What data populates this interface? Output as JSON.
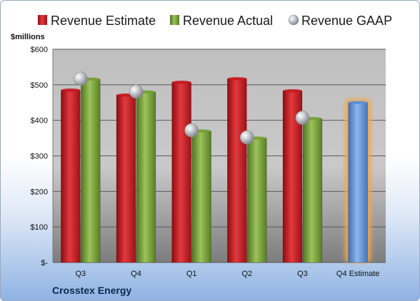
{
  "chart_data": {
    "type": "bar",
    "ylabel": "$millions",
    "ylim": [
      0,
      600
    ],
    "yticks": [
      0,
      100,
      200,
      300,
      400,
      500,
      600
    ],
    "ytick_labels": [
      "$-",
      "$100",
      "$200",
      "$300",
      "$400",
      "$500",
      "$600"
    ],
    "categories": [
      "Q3",
      "Q4",
      "Q1",
      "Q2",
      "Q3",
      "Q4 Estimate"
    ],
    "grid": true,
    "legend_placement": "top",
    "series": [
      {
        "name": "Revenue Estimate",
        "color": "#c8161d",
        "marker": "bar",
        "values": [
          485,
          471,
          507,
          517,
          483,
          null
        ]
      },
      {
        "name": "Revenue Actual",
        "color": "#77a033",
        "marker": "bar",
        "values": [
          516,
          480,
          370,
          350,
          405,
          null
        ]
      },
      {
        "name": "Revenue GAAP",
        "color": "#b8bcc4",
        "marker": "circle",
        "values": [
          517,
          481,
          372,
          352,
          407,
          null
        ]
      },
      {
        "name": "",
        "color": "#5b8fd6",
        "marker": "bar",
        "highlight": "#f4a64a",
        "values": [
          null,
          null,
          null,
          null,
          null,
          450
        ]
      }
    ],
    "footer": "Crosstex Energy"
  }
}
